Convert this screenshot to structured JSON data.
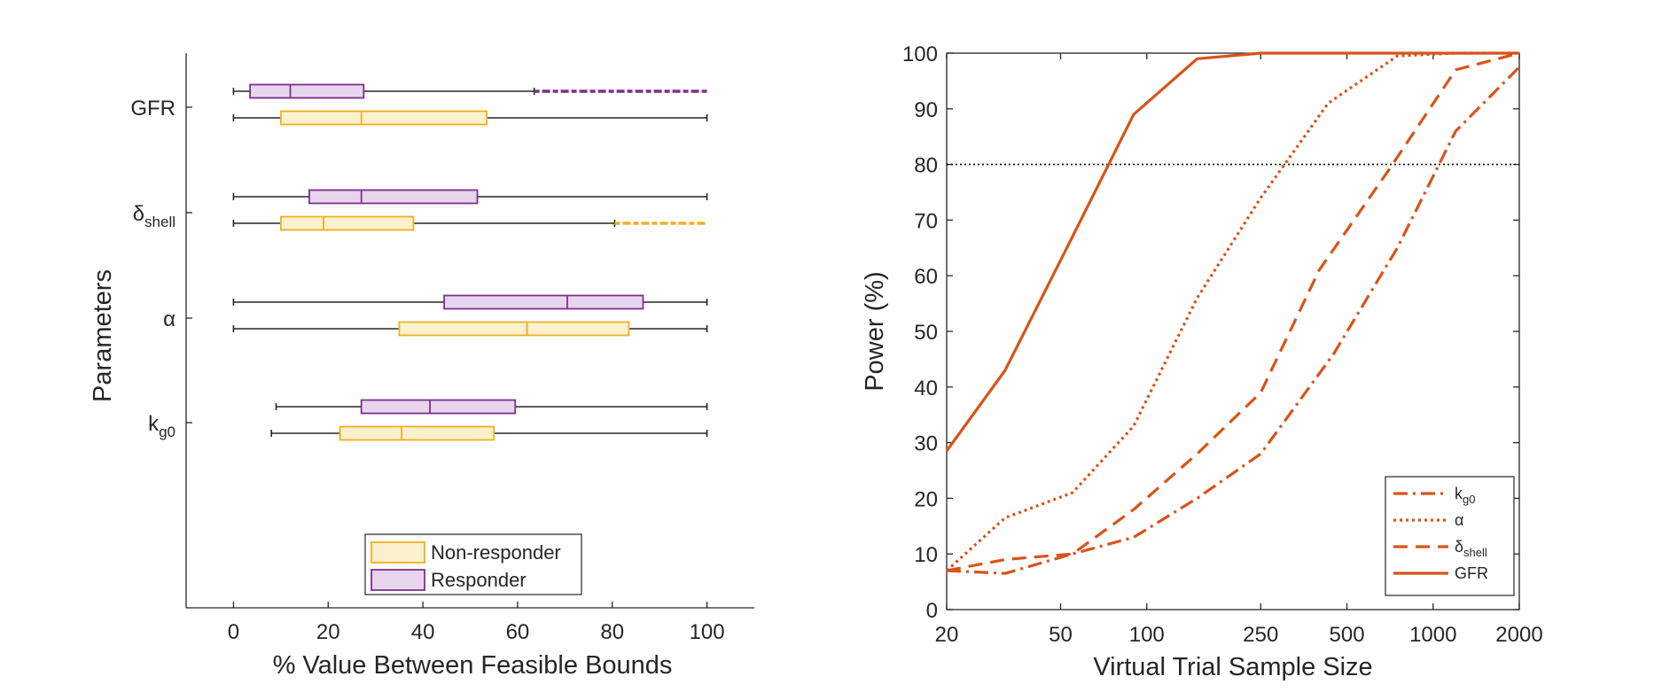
{
  "chart_data": [
    {
      "type": "boxplot",
      "xlabel": "% Value Between Feasible Bounds",
      "ylabel": "Parameters",
      "xlim": [
        -10,
        110
      ],
      "xticks": [
        0,
        20,
        40,
        60,
        80,
        100
      ],
      "grid": false,
      "legend_position": "bottom-center",
      "categories": [
        {
          "label": "GFR",
          "sub": ""
        },
        {
          "label": "δ",
          "sub": "shell"
        },
        {
          "label": "α",
          "sub": ""
        },
        {
          "label": "k",
          "sub": "g0"
        }
      ],
      "series": [
        {
          "name": "Responder",
          "fill": "#e6d5ec",
          "stroke": "#7e2f8e",
          "boxes": [
            {
              "whisker_low": 0,
              "q1": 3.5,
              "median": 12,
              "q3": 27.5,
              "whisker_high": 63.5,
              "outlier_range": [
                63.5,
                100
              ]
            },
            {
              "whisker_low": 0,
              "q1": 16,
              "median": 27,
              "q3": 51.5,
              "whisker_high": 100
            },
            {
              "whisker_low": 0,
              "q1": 44.5,
              "median": 70.5,
              "q3": 86.5,
              "whisker_high": 100
            },
            {
              "whisker_low": 9,
              "q1": 27,
              "median": 41.5,
              "q3": 59.5,
              "whisker_high": 100
            }
          ]
        },
        {
          "name": "Non-responder",
          "fill": "#fdf0cc",
          "stroke": "#edb120",
          "boxes": [
            {
              "whisker_low": 0,
              "q1": 10,
              "median": 27,
              "q3": 53.5,
              "whisker_high": 100
            },
            {
              "whisker_low": 0,
              "q1": 10,
              "median": 19,
              "q3": 38,
              "whisker_high": 80.5,
              "outlier_range": [
                80.5,
                100
              ]
            },
            {
              "whisker_low": 0,
              "q1": 35,
              "median": 62,
              "q3": 83.5,
              "whisker_high": 100
            },
            {
              "whisker_low": 8,
              "q1": 22.5,
              "median": 35.5,
              "q3": 55,
              "whisker_high": 100
            }
          ]
        }
      ]
    },
    {
      "type": "line",
      "xlabel": "Virtual Trial Sample Size",
      "ylabel": "Power (%)",
      "xscale": "log",
      "xlim": [
        20,
        2000
      ],
      "ylim": [
        0,
        100
      ],
      "xticks": [
        20,
        50,
        100,
        250,
        500,
        1000,
        2000
      ],
      "yticks": [
        0,
        10,
        20,
        30,
        40,
        50,
        60,
        70,
        80,
        90,
        100
      ],
      "reference_line": 80,
      "grid": false,
      "legend_position": "bottom-right",
      "color": "#d95319",
      "series": [
        {
          "name": "k",
          "sub": "g0",
          "style": "dashdot",
          "x": [
            20,
            32,
            55,
            90,
            150,
            250,
            450,
            750,
            1200,
            2000
          ],
          "y": [
            7,
            6.5,
            10,
            13,
            20,
            28,
            46,
            65,
            86,
            97.5
          ]
        },
        {
          "name": "α",
          "sub": "",
          "style": "dotted",
          "x": [
            20,
            32,
            55,
            90,
            150,
            250,
            430,
            750,
            1200,
            2000
          ],
          "y": [
            7,
            16.5,
            21,
            33,
            56,
            74,
            91,
            99.5,
            100,
            100
          ]
        },
        {
          "name": "δ",
          "sub": "shell",
          "style": "dashed",
          "x": [
            20,
            32,
            55,
            90,
            150,
            250,
            400,
            700,
            1200,
            2000
          ],
          "y": [
            7,
            9,
            10,
            18,
            28,
            39,
            61,
            79,
            97,
            100
          ]
        },
        {
          "name": "GFR",
          "sub": "",
          "style": "solid",
          "x": [
            20,
            32,
            55,
            90,
            150,
            250,
            400,
            1000,
            2000
          ],
          "y": [
            28.5,
            43,
            67,
            89,
            99,
            100,
            100,
            100,
            100
          ]
        }
      ]
    }
  ]
}
